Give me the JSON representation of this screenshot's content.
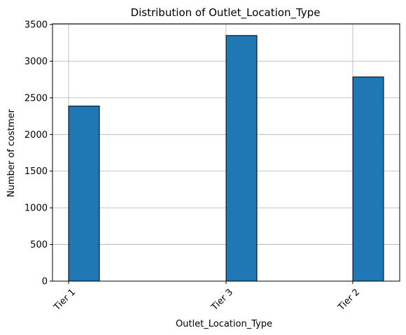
{
  "chart_data": {
    "type": "bar",
    "title": "Distribution of Outlet_Location_Type",
    "xlabel": "Outlet_Location_Type",
    "ylabel": "Number of costmer",
    "categories": [
      "Tier 1",
      "Tier 3",
      "Tier 2"
    ],
    "values": [
      2388,
      3350,
      2785
    ],
    "ylim": [
      0,
      3500
    ],
    "yticks": [
      0,
      500,
      1000,
      1500,
      2000,
      2500,
      3000,
      3500
    ],
    "grid": true,
    "x_tick_rotation": 45,
    "bar_color": "#1f77b4",
    "bar_edge_color": "#000000",
    "grid_color": "#b0b0b0"
  }
}
